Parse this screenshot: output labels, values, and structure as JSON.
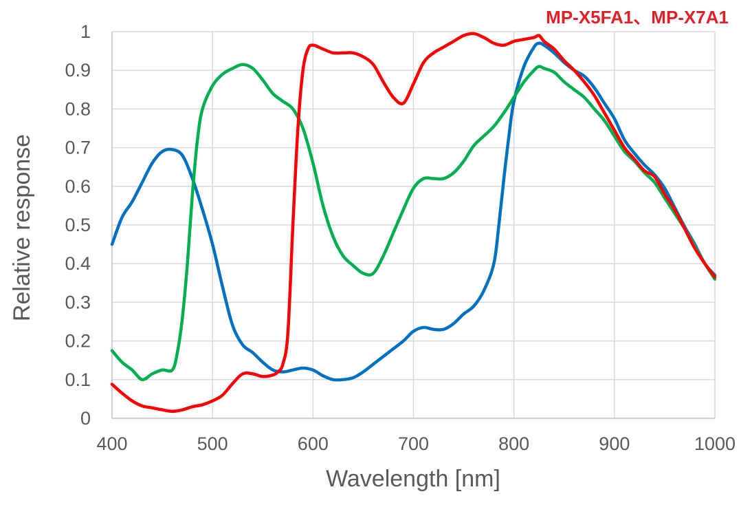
{
  "chart_data": {
    "type": "line",
    "title": "MP-X5FA1、MP-X7A1",
    "xlabel": "Wavelength [nm]",
    "ylabel": "Relative response",
    "xlim": [
      400,
      1000
    ],
    "ylim": [
      0,
      1
    ],
    "xticks": [
      "400",
      "500",
      "600",
      "700",
      "800",
      "900",
      "1000"
    ],
    "yticks": [
      "0",
      "0.1",
      "0.2",
      "0.3",
      "0.4",
      "0.5",
      "0.6",
      "0.7",
      "0.8",
      "0.9",
      "1"
    ],
    "grid": true,
    "series": [
      {
        "color": "#0070c0",
        "points": [
          [
            400,
            0.45
          ],
          [
            410,
            0.52
          ],
          [
            420,
            0.56
          ],
          [
            430,
            0.61
          ],
          [
            440,
            0.66
          ],
          [
            450,
            0.69
          ],
          [
            460,
            0.695
          ],
          [
            470,
            0.68
          ],
          [
            480,
            0.62
          ],
          [
            490,
            0.54
          ],
          [
            500,
            0.45
          ],
          [
            510,
            0.34
          ],
          [
            520,
            0.24
          ],
          [
            530,
            0.19
          ],
          [
            540,
            0.17
          ],
          [
            550,
            0.145
          ],
          [
            560,
            0.125
          ],
          [
            570,
            0.12
          ],
          [
            580,
            0.125
          ],
          [
            590,
            0.13
          ],
          [
            600,
            0.125
          ],
          [
            610,
            0.11
          ],
          [
            620,
            0.1
          ],
          [
            630,
            0.1
          ],
          [
            640,
            0.105
          ],
          [
            650,
            0.12
          ],
          [
            660,
            0.14
          ],
          [
            670,
            0.16
          ],
          [
            680,
            0.18
          ],
          [
            690,
            0.2
          ],
          [
            700,
            0.225
          ],
          [
            710,
            0.235
          ],
          [
            720,
            0.23
          ],
          [
            730,
            0.23
          ],
          [
            740,
            0.245
          ],
          [
            750,
            0.27
          ],
          [
            760,
            0.29
          ],
          [
            770,
            0.33
          ],
          [
            780,
            0.4
          ],
          [
            785,
            0.5
          ],
          [
            790,
            0.62
          ],
          [
            795,
            0.73
          ],
          [
            800,
            0.82
          ],
          [
            810,
            0.91
          ],
          [
            820,
            0.96
          ],
          [
            825,
            0.97
          ],
          [
            830,
            0.965
          ],
          [
            840,
            0.945
          ],
          [
            850,
            0.92
          ],
          [
            860,
            0.9
          ],
          [
            870,
            0.885
          ],
          [
            880,
            0.855
          ],
          [
            890,
            0.815
          ],
          [
            900,
            0.775
          ],
          [
            910,
            0.72
          ],
          [
            920,
            0.685
          ],
          [
            930,
            0.655
          ],
          [
            940,
            0.63
          ],
          [
            950,
            0.595
          ],
          [
            960,
            0.545
          ],
          [
            970,
            0.495
          ],
          [
            980,
            0.45
          ],
          [
            990,
            0.4
          ],
          [
            1000,
            0.37
          ]
        ]
      },
      {
        "color": "#00b050",
        "points": [
          [
            400,
            0.175
          ],
          [
            410,
            0.145
          ],
          [
            420,
            0.125
          ],
          [
            430,
            0.1
          ],
          [
            440,
            0.115
          ],
          [
            450,
            0.125
          ],
          [
            460,
            0.125
          ],
          [
            465,
            0.17
          ],
          [
            470,
            0.26
          ],
          [
            475,
            0.4
          ],
          [
            480,
            0.58
          ],
          [
            485,
            0.72
          ],
          [
            490,
            0.8
          ],
          [
            500,
            0.86
          ],
          [
            510,
            0.89
          ],
          [
            520,
            0.905
          ],
          [
            530,
            0.915
          ],
          [
            540,
            0.905
          ],
          [
            550,
            0.875
          ],
          [
            560,
            0.84
          ],
          [
            570,
            0.82
          ],
          [
            580,
            0.8
          ],
          [
            590,
            0.75
          ],
          [
            600,
            0.66
          ],
          [
            610,
            0.55
          ],
          [
            620,
            0.47
          ],
          [
            630,
            0.42
          ],
          [
            640,
            0.395
          ],
          [
            650,
            0.375
          ],
          [
            660,
            0.375
          ],
          [
            670,
            0.42
          ],
          [
            680,
            0.48
          ],
          [
            690,
            0.54
          ],
          [
            700,
            0.595
          ],
          [
            710,
            0.62
          ],
          [
            720,
            0.62
          ],
          [
            730,
            0.62
          ],
          [
            740,
            0.635
          ],
          [
            750,
            0.665
          ],
          [
            760,
            0.705
          ],
          [
            770,
            0.73
          ],
          [
            780,
            0.755
          ],
          [
            790,
            0.79
          ],
          [
            800,
            0.83
          ],
          [
            810,
            0.87
          ],
          [
            820,
            0.9
          ],
          [
            825,
            0.91
          ],
          [
            830,
            0.905
          ],
          [
            840,
            0.895
          ],
          [
            850,
            0.87
          ],
          [
            860,
            0.85
          ],
          [
            870,
            0.83
          ],
          [
            880,
            0.8
          ],
          [
            890,
            0.77
          ],
          [
            900,
            0.73
          ],
          [
            910,
            0.69
          ],
          [
            920,
            0.665
          ],
          [
            930,
            0.635
          ],
          [
            940,
            0.61
          ],
          [
            950,
            0.57
          ],
          [
            960,
            0.53
          ],
          [
            970,
            0.49
          ],
          [
            980,
            0.445
          ],
          [
            990,
            0.4
          ],
          [
            1000,
            0.36
          ]
        ]
      },
      {
        "color": "#ff0000",
        "points": [
          [
            400,
            0.088
          ],
          [
            410,
            0.065
          ],
          [
            420,
            0.045
          ],
          [
            430,
            0.032
          ],
          [
            440,
            0.027
          ],
          [
            450,
            0.022
          ],
          [
            460,
            0.018
          ],
          [
            470,
            0.022
          ],
          [
            480,
            0.03
          ],
          [
            490,
            0.035
          ],
          [
            500,
            0.045
          ],
          [
            510,
            0.06
          ],
          [
            520,
            0.09
          ],
          [
            530,
            0.115
          ],
          [
            540,
            0.115
          ],
          [
            550,
            0.108
          ],
          [
            560,
            0.112
          ],
          [
            565,
            0.12
          ],
          [
            570,
            0.14
          ],
          [
            575,
            0.22
          ],
          [
            580,
            0.5
          ],
          [
            585,
            0.75
          ],
          [
            590,
            0.9
          ],
          [
            595,
            0.955
          ],
          [
            600,
            0.965
          ],
          [
            610,
            0.955
          ],
          [
            620,
            0.945
          ],
          [
            630,
            0.945
          ],
          [
            640,
            0.945
          ],
          [
            650,
            0.935
          ],
          [
            660,
            0.915
          ],
          [
            670,
            0.87
          ],
          [
            680,
            0.83
          ],
          [
            690,
            0.815
          ],
          [
            700,
            0.865
          ],
          [
            710,
            0.92
          ],
          [
            720,
            0.945
          ],
          [
            730,
            0.96
          ],
          [
            740,
            0.975
          ],
          [
            750,
            0.99
          ],
          [
            760,
            0.995
          ],
          [
            770,
            0.985
          ],
          [
            780,
            0.97
          ],
          [
            790,
            0.965
          ],
          [
            800,
            0.975
          ],
          [
            810,
            0.98
          ],
          [
            820,
            0.985
          ],
          [
            825,
            0.99
          ],
          [
            830,
            0.975
          ],
          [
            840,
            0.955
          ],
          [
            850,
            0.925
          ],
          [
            860,
            0.9
          ],
          [
            870,
            0.87
          ],
          [
            880,
            0.835
          ],
          [
            890,
            0.79
          ],
          [
            900,
            0.745
          ],
          [
            910,
            0.7
          ],
          [
            920,
            0.67
          ],
          [
            930,
            0.64
          ],
          [
            940,
            0.625
          ],
          [
            950,
            0.58
          ],
          [
            960,
            0.54
          ],
          [
            970,
            0.49
          ],
          [
            980,
            0.44
          ],
          [
            990,
            0.4
          ],
          [
            1000,
            0.365
          ]
        ]
      }
    ]
  }
}
